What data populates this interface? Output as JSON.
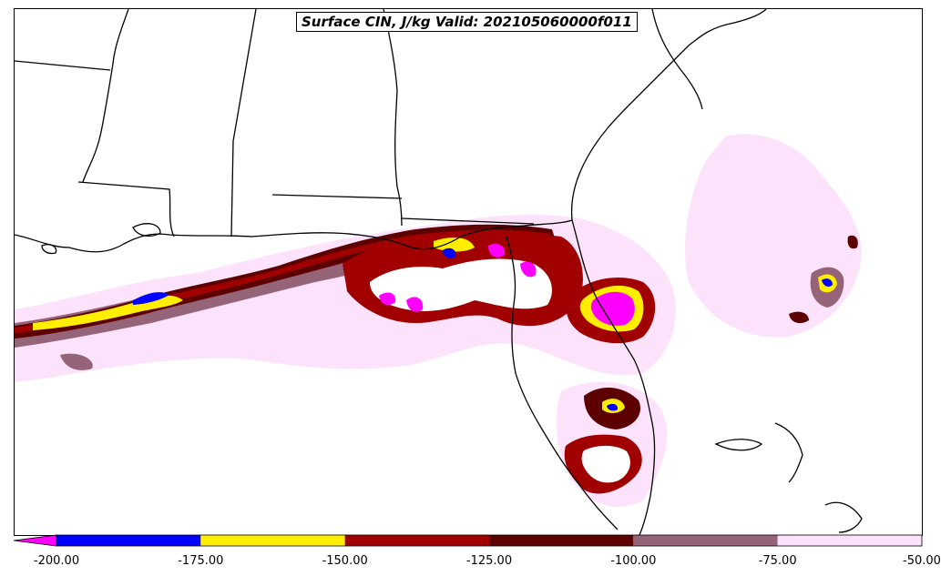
{
  "title": "Surface CIN, J/kg Valid: 202105060000f011",
  "colorbar": {
    "ticks": [
      "-200.00",
      "-175.00",
      "-150.00",
      "-125.00",
      "-100.00",
      "-75.00",
      "-50.00"
    ],
    "bins": [
      {
        "from": -200,
        "to": -175,
        "color": "#0000ff"
      },
      {
        "from": -175,
        "to": -150,
        "color": "#ffee00"
      },
      {
        "from": -150,
        "to": -125,
        "color": "#a00000"
      },
      {
        "from": -125,
        "to": -100,
        "color": "#5c0000"
      },
      {
        "from": -100,
        "to": -75,
        "color": "#966478"
      },
      {
        "from": -75,
        "to": -50,
        "color": "#fde2fb"
      }
    ],
    "under_color": "#ff00ff",
    "extend": "min"
  },
  "colors": {
    "magenta": "#ff00ff",
    "blue": "#0000ff",
    "yellow": "#ffee00",
    "red": "#a00000",
    "darkred": "#5c0000",
    "mauve": "#966478",
    "pink": "#fde2fb"
  }
}
